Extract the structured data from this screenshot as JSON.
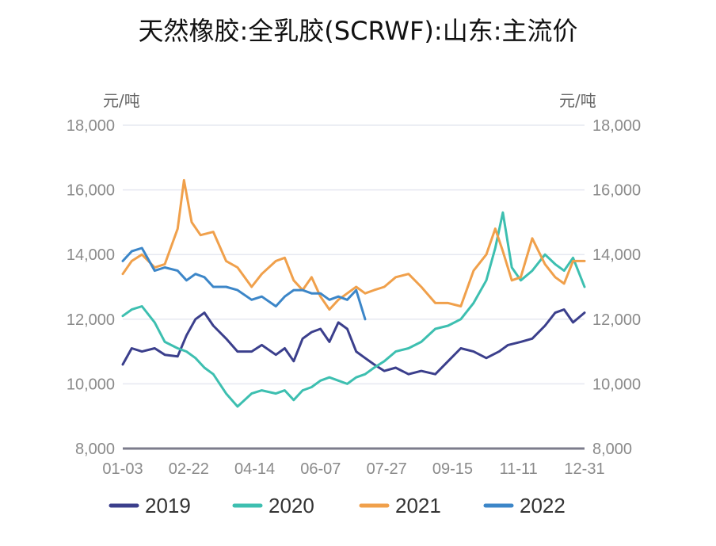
{
  "title": "天然橡胶:全乳胶(SCRWF):山东:主流价",
  "colors": {
    "s2019": "#3b3f8c",
    "s2020": "#3dbfb0",
    "s2021": "#f0a04b",
    "s2022": "#3c86c8",
    "grid": "#e6e8f0",
    "axis": "#7c7c8c"
  },
  "chart_data": {
    "type": "line",
    "title": "天然橡胶:全乳胶(SCRWF):山东:主流价",
    "y_unit_left": "元/吨",
    "y_unit_right": "元/吨",
    "ylim": [
      8000,
      18000
    ],
    "yticks": [
      8000,
      10000,
      12000,
      14000,
      16000,
      18000
    ],
    "ytick_labels": [
      "8,000",
      "10,000",
      "12,000",
      "14,000",
      "16,000",
      "18,000"
    ],
    "x_tick_labels": [
      "01-03",
      "02-22",
      "04-14",
      "06-07",
      "07-27",
      "09-15",
      "11-11",
      "12-31"
    ],
    "legend_position": "bottom",
    "grid": true,
    "series": [
      {
        "name": "2019",
        "color_key": "s2019",
        "points": [
          [
            "01-03",
            10600
          ],
          [
            "01-10",
            11100
          ],
          [
            "01-18",
            11000
          ],
          [
            "01-28",
            11100
          ],
          [
            "02-05",
            10900
          ],
          [
            "02-15",
            10850
          ],
          [
            "02-22",
            11500
          ],
          [
            "03-01",
            12000
          ],
          [
            "03-08",
            12200
          ],
          [
            "03-15",
            11800
          ],
          [
            "03-25",
            11400
          ],
          [
            "04-03",
            11000
          ],
          [
            "04-14",
            11000
          ],
          [
            "04-22",
            11200
          ],
          [
            "05-03",
            10900
          ],
          [
            "05-10",
            11100
          ],
          [
            "05-17",
            10700
          ],
          [
            "05-24",
            11400
          ],
          [
            "05-31",
            11600
          ],
          [
            "06-07",
            11700
          ],
          [
            "06-14",
            11300
          ],
          [
            "06-21",
            11900
          ],
          [
            "06-28",
            11700
          ],
          [
            "07-05",
            11000
          ],
          [
            "07-12",
            10800
          ],
          [
            "07-19",
            10600
          ],
          [
            "07-27",
            10400
          ],
          [
            "08-05",
            10500
          ],
          [
            "08-15",
            10300
          ],
          [
            "08-25",
            10400
          ],
          [
            "09-05",
            10300
          ],
          [
            "09-15",
            10700
          ],
          [
            "09-25",
            11100
          ],
          [
            "10-05",
            11000
          ],
          [
            "10-15",
            10800
          ],
          [
            "10-25",
            11000
          ],
          [
            "11-01",
            11200
          ],
          [
            "11-11",
            11300
          ],
          [
            "11-20",
            11400
          ],
          [
            "11-30",
            11800
          ],
          [
            "12-08",
            12200
          ],
          [
            "12-15",
            12300
          ],
          [
            "12-22",
            11900
          ],
          [
            "12-31",
            12200
          ]
        ]
      },
      {
        "name": "2020",
        "color_key": "s2020",
        "points": [
          [
            "01-03",
            12100
          ],
          [
            "01-10",
            12300
          ],
          [
            "01-18",
            12400
          ],
          [
            "01-28",
            11900
          ],
          [
            "02-05",
            11300
          ],
          [
            "02-15",
            11100
          ],
          [
            "02-22",
            11000
          ],
          [
            "03-01",
            10800
          ],
          [
            "03-08",
            10500
          ],
          [
            "03-15",
            10300
          ],
          [
            "03-25",
            9700
          ],
          [
            "04-03",
            9300
          ],
          [
            "04-14",
            9700
          ],
          [
            "04-22",
            9800
          ],
          [
            "05-03",
            9700
          ],
          [
            "05-10",
            9800
          ],
          [
            "05-17",
            9500
          ],
          [
            "05-24",
            9800
          ],
          [
            "05-31",
            9900
          ],
          [
            "06-07",
            10100
          ],
          [
            "06-14",
            10200
          ],
          [
            "06-21",
            10100
          ],
          [
            "06-28",
            10000
          ],
          [
            "07-05",
            10200
          ],
          [
            "07-12",
            10300
          ],
          [
            "07-19",
            10500
          ],
          [
            "07-27",
            10700
          ],
          [
            "08-05",
            11000
          ],
          [
            "08-15",
            11100
          ],
          [
            "08-25",
            11300
          ],
          [
            "09-05",
            11700
          ],
          [
            "09-15",
            11800
          ],
          [
            "09-25",
            12000
          ],
          [
            "10-05",
            12500
          ],
          [
            "10-15",
            13200
          ],
          [
            "10-22",
            14200
          ],
          [
            "10-28",
            15300
          ],
          [
            "11-04",
            13600
          ],
          [
            "11-11",
            13200
          ],
          [
            "11-20",
            13500
          ],
          [
            "11-30",
            14000
          ],
          [
            "12-08",
            13700
          ],
          [
            "12-15",
            13500
          ],
          [
            "12-22",
            13900
          ],
          [
            "12-31",
            13000
          ]
        ]
      },
      {
        "name": "2021",
        "color_key": "s2021",
        "points": [
          [
            "01-03",
            13400
          ],
          [
            "01-10",
            13800
          ],
          [
            "01-18",
            14000
          ],
          [
            "01-28",
            13600
          ],
          [
            "02-05",
            13700
          ],
          [
            "02-15",
            14800
          ],
          [
            "02-20",
            16300
          ],
          [
            "02-26",
            15000
          ],
          [
            "03-05",
            14600
          ],
          [
            "03-15",
            14700
          ],
          [
            "03-25",
            13800
          ],
          [
            "04-03",
            13600
          ],
          [
            "04-14",
            13000
          ],
          [
            "04-22",
            13400
          ],
          [
            "05-03",
            13800
          ],
          [
            "05-10",
            13900
          ],
          [
            "05-17",
            13200
          ],
          [
            "05-24",
            12900
          ],
          [
            "05-31",
            13300
          ],
          [
            "06-07",
            12700
          ],
          [
            "06-14",
            12300
          ],
          [
            "06-21",
            12600
          ],
          [
            "06-28",
            12800
          ],
          [
            "07-05",
            13000
          ],
          [
            "07-12",
            12800
          ],
          [
            "07-19",
            12900
          ],
          [
            "07-27",
            13000
          ],
          [
            "08-05",
            13300
          ],
          [
            "08-15",
            13400
          ],
          [
            "08-25",
            13000
          ],
          [
            "09-05",
            12500
          ],
          [
            "09-15",
            12500
          ],
          [
            "09-25",
            12400
          ],
          [
            "10-05",
            13500
          ],
          [
            "10-15",
            14000
          ],
          [
            "10-22",
            14800
          ],
          [
            "10-28",
            14100
          ],
          [
            "11-04",
            13200
          ],
          [
            "11-11",
            13300
          ],
          [
            "11-20",
            14500
          ],
          [
            "11-30",
            13700
          ],
          [
            "12-08",
            13300
          ],
          [
            "12-15",
            13100
          ],
          [
            "12-22",
            13800
          ],
          [
            "12-31",
            13800
          ]
        ]
      },
      {
        "name": "2022",
        "color_key": "s2022",
        "points": [
          [
            "01-03",
            13800
          ],
          [
            "01-10",
            14100
          ],
          [
            "01-18",
            14200
          ],
          [
            "01-28",
            13500
          ],
          [
            "02-05",
            13600
          ],
          [
            "02-15",
            13500
          ],
          [
            "02-22",
            13200
          ],
          [
            "03-01",
            13400
          ],
          [
            "03-08",
            13300
          ],
          [
            "03-15",
            13000
          ],
          [
            "03-25",
            13000
          ],
          [
            "04-03",
            12900
          ],
          [
            "04-14",
            12600
          ],
          [
            "04-22",
            12700
          ],
          [
            "05-03",
            12400
          ],
          [
            "05-10",
            12700
          ],
          [
            "05-17",
            12900
          ],
          [
            "05-24",
            12900
          ],
          [
            "05-31",
            12800
          ],
          [
            "06-07",
            12800
          ],
          [
            "06-14",
            12600
          ],
          [
            "06-21",
            12700
          ],
          [
            "06-28",
            12600
          ],
          [
            "07-05",
            12900
          ],
          [
            "07-12",
            12000
          ]
        ]
      }
    ]
  }
}
